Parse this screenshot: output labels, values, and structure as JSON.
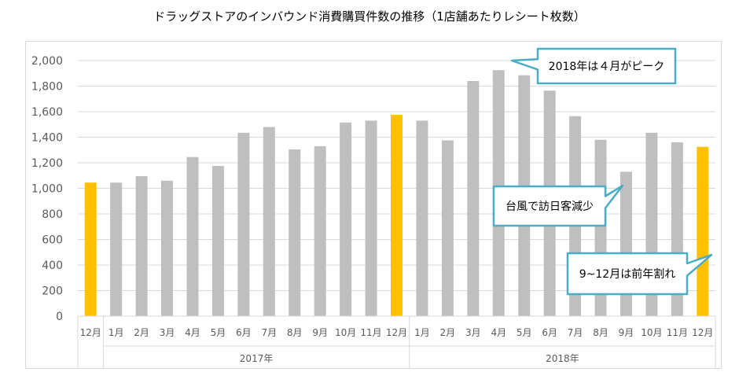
{
  "chart_data": {
    "type": "bar",
    "title": "ドラッグストアのインバウンド消費購買件数の推移（1店舗あたりレシート枚数）",
    "ylim": [
      0,
      2000
    ],
    "yticks": [
      "0",
      "200",
      "400",
      "600",
      "800",
      "1,000",
      "1,200",
      "1,400",
      "1,600",
      "1,800",
      "2,000"
    ],
    "ytick_values": [
      0,
      200,
      400,
      600,
      800,
      1000,
      1200,
      1400,
      1600,
      1800,
      2000
    ],
    "categories": [
      "12月",
      "1月",
      "2月",
      "3月",
      "4月",
      "5月",
      "6月",
      "7月",
      "8月",
      "9月",
      "10月",
      "11月",
      "12月",
      "1月",
      "2月",
      "3月",
      "4月",
      "5月",
      "6月",
      "7月",
      "8月",
      "9月",
      "10月",
      "11月",
      "12月"
    ],
    "values": [
      1045,
      1045,
      1095,
      1060,
      1245,
      1175,
      1435,
      1480,
      1305,
      1330,
      1515,
      1530,
      1575,
      1530,
      1375,
      1840,
      1925,
      1885,
      1765,
      1565,
      1380,
      1130,
      1435,
      1360,
      1325
    ],
    "highlight": [
      true,
      false,
      false,
      false,
      false,
      false,
      false,
      false,
      false,
      false,
      false,
      false,
      true,
      false,
      false,
      false,
      false,
      false,
      false,
      false,
      false,
      false,
      false,
      false,
      true
    ],
    "colors": {
      "normal": "#bfbfbf",
      "highlight": "#ffc000",
      "callout_border": "#4bacc6",
      "grid": "#d9d9d9"
    },
    "year_groups": [
      {
        "label": "2017年",
        "start": 1,
        "end": 12
      },
      {
        "label": "2018年",
        "start": 13,
        "end": 24
      }
    ],
    "annotations": [
      {
        "text": "2018年は４月がピーク",
        "target_index": 16
      },
      {
        "text": "台風で訪日客減少",
        "target_index": 21
      },
      {
        "text": "9~12月は前年割れ",
        "target_index": 24
      }
    ]
  }
}
